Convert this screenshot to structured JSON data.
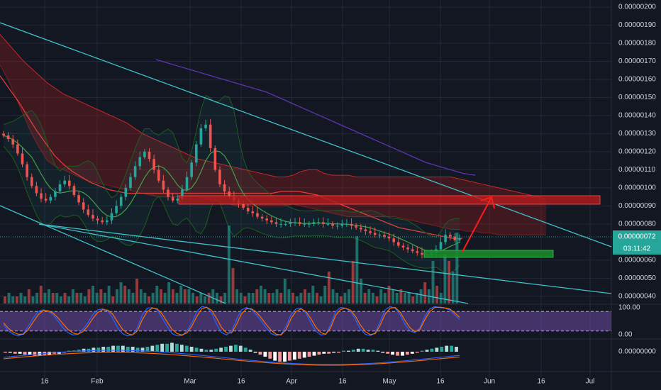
{
  "colors": {
    "background": "#131722",
    "grid": "#232838",
    "axis_text": "#d1d4dc",
    "up": "#26a69a",
    "down": "#ef5350",
    "trendline": "#3fc1c9",
    "price_dotted": "#26a69a",
    "stoch_k": "#2962ff",
    "stoch_d": "#ff6d00",
    "stoch_band": "#7e57c2",
    "zone_resistance": "#b71c1c",
    "zone_support": "#1b8a2b",
    "arrow": "#ff1a1a"
  },
  "chart_data": [
    {
      "type": "candlestick",
      "pane": "price",
      "y_ticks": [
        "0.00000200",
        "0.00000190",
        "0.00000180",
        "0.00000170",
        "0.00000160",
        "0.00000150",
        "0.00000140",
        "0.00000130",
        "0.00000120",
        "0.00000110",
        "0.00000100",
        "0.00000090",
        "0.00000080",
        "0.00000060",
        "0.00000050",
        "0.00000040"
      ],
      "ylim": [
        3.6e-07,
        2.02e-06
      ],
      "last_price_label": "0.00000072",
      "countdown_label": "03:11:42",
      "x_ticks": [
        "16",
        "Feb",
        "Mar",
        "16",
        "Apr",
        "16",
        "May",
        "16",
        "Jun",
        "16",
        "Jul"
      ],
      "close_series": [
        1.29,
        1.27,
        1.24,
        1.19,
        1.13,
        1.06,
        1.01,
        0.97,
        0.94,
        0.93,
        0.95,
        0.98,
        1.02,
        1.04,
        1.01,
        0.96,
        0.92,
        0.88,
        0.85,
        0.83,
        0.82,
        0.81,
        0.82,
        0.86,
        0.9,
        0.95,
        1.0,
        1.06,
        1.12,
        1.17,
        1.2,
        1.16,
        1.1,
        1.04,
        0.99,
        0.95,
        0.93,
        0.94,
        0.99,
        1.06,
        1.14,
        1.24,
        1.33,
        1.35,
        1.22,
        1.1,
        1.02,
        0.98,
        0.95,
        0.93,
        0.91,
        0.89,
        0.87,
        0.86,
        0.84,
        0.83,
        0.82,
        0.81,
        0.8,
        0.8,
        0.8,
        0.81,
        0.81,
        0.8,
        0.8,
        0.8,
        0.81,
        0.81,
        0.8,
        0.8,
        0.79,
        0.79,
        0.8,
        0.8,
        0.79,
        0.78,
        0.77,
        0.76,
        0.75,
        0.74,
        0.74,
        0.73,
        0.72,
        0.7,
        0.68,
        0.67,
        0.66,
        0.65,
        0.64,
        0.63,
        0.63,
        0.64,
        0.66,
        0.7,
        0.74,
        0.73,
        0.71,
        0.72
      ],
      "cloud_top_series": [
        1.85,
        1.8,
        1.75,
        1.7,
        1.66,
        1.62,
        1.58,
        1.55,
        1.52,
        1.5,
        1.48,
        1.46,
        1.44,
        1.42,
        1.4,
        1.38,
        1.36,
        1.33,
        1.3,
        1.28,
        1.26,
        1.24,
        1.22,
        1.2,
        1.18,
        1.16,
        1.15,
        1.14,
        1.13,
        1.12,
        1.11,
        1.1,
        1.09,
        1.08,
        1.07,
        1.06,
        1.06,
        1.07,
        1.09,
        1.1,
        1.1,
        1.08,
        1.07,
        1.07,
        1.07,
        1.06,
        1.06,
        1.06,
        1.06,
        1.06,
        1.06,
        1.06,
        1.06,
        1.06,
        1.06,
        1.06,
        1.06,
        1.06,
        1.05,
        1.04,
        1.03,
        1.02,
        1.01,
        1.0,
        0.99,
        0.98,
        0.97,
        0.96,
        0.95,
        0.94
      ],
      "cloud_bottom_series": [
        1.68,
        1.6,
        1.5,
        1.4,
        1.3,
        1.22,
        1.15,
        1.12,
        1.1,
        1.08,
        1.06,
        1.04,
        1.03,
        1.02,
        1.01,
        1.0,
        0.99,
        0.98,
        0.97,
        0.96,
        0.95,
        0.95,
        0.95,
        0.95,
        0.95,
        0.95,
        0.94,
        0.93,
        0.92,
        0.91,
        0.9,
        0.9,
        0.9,
        0.9,
        0.9,
        0.9,
        0.9,
        0.91,
        0.9,
        0.89,
        0.88,
        0.87,
        0.86,
        0.85,
        0.84,
        0.84,
        0.84,
        0.84,
        0.84,
        0.84,
        0.84,
        0.83,
        0.82,
        0.81,
        0.8,
        0.79,
        0.78,
        0.77,
        0.77,
        0.76,
        0.76,
        0.75,
        0.75,
        0.74,
        0.74,
        0.74,
        0.74,
        0.74,
        0.74,
        0.74
      ],
      "ma_red_series": [
        1.62,
        1.55,
        1.48,
        1.4,
        1.32,
        1.25,
        1.18,
        1.13,
        1.09,
        1.06,
        1.03,
        1.01,
        0.99,
        0.98,
        0.97,
        0.97,
        0.97,
        0.97,
        0.97,
        0.97,
        0.97,
        0.97,
        0.97,
        0.97,
        0.97,
        0.97,
        0.97,
        0.97,
        0.97,
        0.97,
        0.97,
        0.98,
        0.98,
        0.98,
        0.97,
        0.96,
        0.94,
        0.92,
        0.9,
        0.88,
        0.86,
        0.84,
        0.82,
        0.8,
        0.78,
        0.77,
        0.76,
        0.75,
        0.74,
        0.73,
        0.72,
        0.72
      ],
      "ma_purple_series": [
        1.71,
        1.69,
        1.67,
        1.65,
        1.63,
        1.61,
        1.59,
        1.57,
        1.55,
        1.53,
        1.5,
        1.47,
        1.44,
        1.41,
        1.38,
        1.35,
        1.32,
        1.29,
        1.26,
        1.23,
        1.2,
        1.17,
        1.14,
        1.12,
        1.1,
        1.08,
        1.07
      ]
    },
    {
      "type": "bar",
      "pane": "volume",
      "values": [
        2,
        3,
        2,
        2,
        3,
        2,
        4,
        2,
        3,
        5,
        3,
        4,
        3,
        3,
        2,
        3,
        2,
        4,
        3,
        3,
        2,
        4,
        5,
        3,
        4,
        3,
        5,
        2,
        4,
        6,
        5,
        4,
        3,
        7,
        4,
        3,
        2,
        3,
        5,
        4,
        3,
        6,
        4,
        3,
        5,
        4,
        4,
        3,
        2,
        3,
        2,
        3,
        4,
        3,
        2,
        3,
        22,
        10,
        4,
        3,
        2,
        3,
        3,
        4,
        5,
        4,
        3,
        3,
        4,
        3,
        7,
        4,
        3,
        2,
        3,
        4,
        3,
        5,
        3,
        2,
        5,
        9,
        4,
        3,
        2,
        3,
        4,
        12,
        19,
        7,
        3,
        4,
        3,
        2,
        4,
        3,
        5,
        4,
        3,
        4,
        3,
        3,
        2,
        3,
        4,
        6,
        4,
        12,
        5,
        3,
        14,
        12,
        9,
        20
      ]
    },
    {
      "type": "line",
      "pane": "stochastic",
      "y_ticks": [
        "100.00",
        "0.00"
      ],
      "ylim": [
        0,
        100
      ],
      "bands": [
        80,
        20
      ],
      "series": [
        {
          "values": [
            40,
            20,
            10,
            5,
            12,
            35,
            60,
            80,
            85,
            80,
            70,
            50,
            30,
            15,
            8,
            10,
            25,
            45,
            70,
            85,
            88,
            82,
            60,
            30,
            12,
            5,
            8,
            30,
            70,
            90,
            92,
            85,
            60,
            35,
            12,
            5,
            6,
            20,
            45,
            80,
            95,
            92,
            75,
            40,
            15,
            8,
            20,
            55,
            85,
            92,
            85,
            70,
            50,
            30,
            12,
            6,
            10,
            35,
            70,
            88,
            90,
            75,
            45,
            20,
            8,
            10,
            40,
            80,
            92,
            90,
            80,
            55,
            25,
            10,
            6,
            15,
            50,
            85,
            95,
            90,
            70,
            40,
            20,
            15,
            30,
            65,
            88,
            95,
            92,
            90,
            85,
            70,
            55
          ]
        },
        {
          "values": [
            45,
            28,
            16,
            10,
            10,
            25,
            48,
            70,
            82,
            82,
            75,
            60,
            42,
            25,
            14,
            10,
            18,
            35,
            58,
            77,
            85,
            84,
            72,
            48,
            25,
            12,
            8,
            20,
            55,
            80,
            90,
            88,
            72,
            48,
            25,
            12,
            8,
            14,
            35,
            65,
            88,
            93,
            83,
            58,
            30,
            14,
            14,
            40,
            72,
            88,
            88,
            78,
            60,
            40,
            22,
            10,
            8,
            25,
            58,
            80,
            88,
            80,
            58,
            32,
            15,
            10,
            30,
            68,
            86,
            90,
            84,
            65,
            38,
            18,
            9,
            12,
            38,
            72,
            90,
            92,
            78,
            52,
            30,
            18,
            25,
            55,
            80,
            92,
            93,
            91,
            88,
            76,
            62
          ]
        }
      ]
    },
    {
      "type": "bar",
      "pane": "macd",
      "y_ticks": [
        "0.00000000"
      ],
      "histogram": [
        -1,
        -1,
        -2,
        -2,
        -3,
        -3,
        -4,
        -4,
        -3,
        -3,
        -2,
        -2,
        -1,
        1,
        1,
        2,
        3,
        3,
        4,
        4,
        5,
        5,
        6,
        6,
        6,
        5,
        5,
        4,
        4,
        5,
        6,
        7,
        8,
        8,
        9,
        8,
        7,
        6,
        5,
        4,
        3,
        2,
        2,
        3,
        4,
        5,
        6,
        7,
        6,
        4,
        2,
        -1,
        -3,
        -5,
        -7,
        -9,
        -10,
        -10,
        -9,
        -8,
        -7,
        -6,
        -5,
        -4,
        -3,
        -2,
        -2,
        -1,
        -1,
        1,
        1,
        2,
        3,
        3,
        2,
        2,
        1,
        -1,
        -2,
        -3,
        -4,
        -4,
        -3,
        -2,
        -1,
        1,
        2,
        3,
        4,
        5,
        6,
        6,
        5
      ]
    }
  ]
}
